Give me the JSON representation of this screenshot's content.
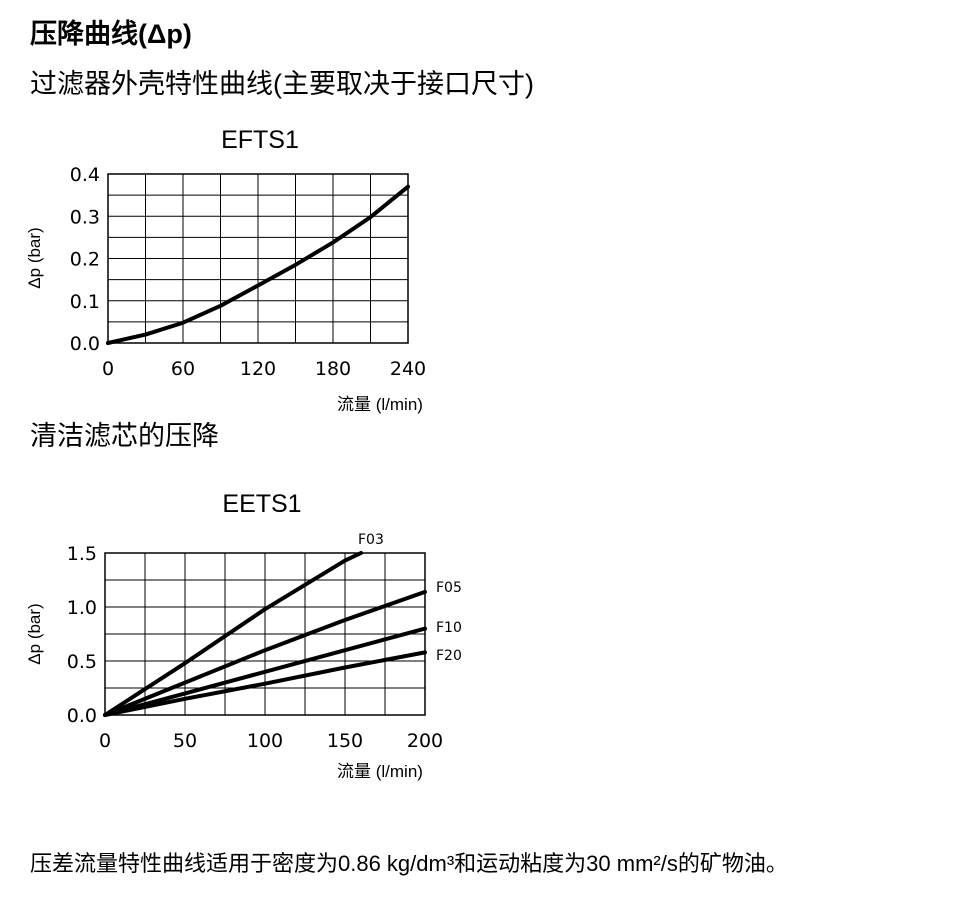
{
  "heading": "压降曲线(Δp)",
  "subheading": "过滤器外壳特性曲线(主要取决于接口尺寸)",
  "section2": "清洁滤芯的压降",
  "footnote": "压差流量特性曲线适用于密度为0.86 kg/dm³和运动粘度为30 mm²/s的矿物油。",
  "chart_data": [
    {
      "type": "line",
      "title": "EFTS1",
      "xlabel": "流量 (l/min)",
      "ylabel": "Δp (bar)",
      "xlim": [
        0,
        240
      ],
      "ylim": [
        0,
        0.4
      ],
      "xticks": [
        0,
        60,
        120,
        180,
        240
      ],
      "yticks": [
        0.0,
        0.1,
        0.2,
        0.3,
        0.4
      ],
      "grid": true,
      "series": [
        {
          "x": [
            0,
            30,
            60,
            90,
            120,
            150,
            180,
            210,
            240
          ],
          "y": [
            0.0,
            0.02,
            0.048,
            0.088,
            0.136,
            0.185,
            0.238,
            0.298,
            0.37
          ]
        }
      ]
    },
    {
      "type": "line",
      "title": "EETS1",
      "xlabel": "流量 (l/min)",
      "ylabel": "Δp (bar)",
      "xlim": [
        0,
        200
      ],
      "ylim": [
        0,
        1.5
      ],
      "xticks": [
        0,
        50,
        100,
        150,
        200
      ],
      "yticks": [
        0.0,
        0.5,
        1.0,
        1.5
      ],
      "grid": true,
      "series": [
        {
          "name": "F03",
          "x": [
            0,
            50,
            100,
            150,
            160
          ],
          "y": [
            0.0,
            0.48,
            0.98,
            1.43,
            1.5
          ]
        },
        {
          "name": "F05",
          "x": [
            0,
            50,
            100,
            150,
            200
          ],
          "y": [
            0.0,
            0.3,
            0.6,
            0.88,
            1.14
          ]
        },
        {
          "name": "F10",
          "x": [
            0,
            50,
            100,
            150,
            200
          ],
          "y": [
            0.0,
            0.2,
            0.4,
            0.6,
            0.8
          ]
        },
        {
          "name": "F20",
          "x": [
            0,
            50,
            100,
            150,
            200
          ],
          "y": [
            0.0,
            0.15,
            0.29,
            0.44,
            0.58
          ]
        }
      ]
    }
  ]
}
